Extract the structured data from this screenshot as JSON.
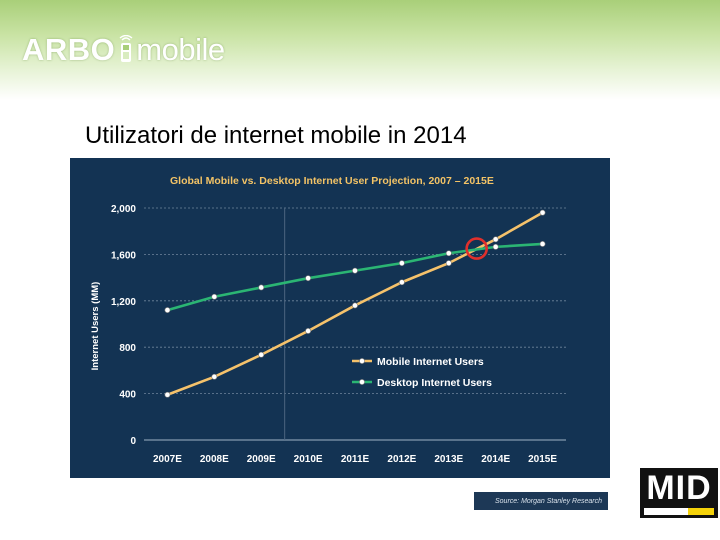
{
  "header": {
    "logo_part1": "ARBO",
    "logo_part2": "mobile",
    "brand_color": "#a9cf79"
  },
  "slide": {
    "title": "Utilizatori de internet mobile in 2014"
  },
  "chart_data": {
    "type": "line",
    "title": "Global Mobile vs. Desktop Internet User Projection, 2007 – 2015E",
    "xlabel": "",
    "ylabel": "Internet Users (MM)",
    "categories": [
      "2007E",
      "2008E",
      "2009E",
      "2010E",
      "2011E",
      "2012E",
      "2013E",
      "2014E",
      "2015E"
    ],
    "ylim": [
      0,
      2000
    ],
    "yticks": [
      "0",
      "400",
      "800",
      "1,200",
      "1,600",
      "2,000"
    ],
    "ytick_values": [
      0,
      400,
      800,
      1200,
      1600,
      2000
    ],
    "grid": true,
    "legend_position": "center-right",
    "series": [
      {
        "name": "Mobile Internet Users",
        "color": "#f5c26b",
        "values": [
          390,
          545,
          735,
          940,
          1160,
          1360,
          1525,
          1730,
          1960
        ]
      },
      {
        "name": "Desktop Internet Users",
        "color": "#2bb573",
        "values": [
          1120,
          1235,
          1315,
          1395,
          1460,
          1525,
          1610,
          1665,
          1690
        ]
      }
    ],
    "annotation": {
      "category": "2014E",
      "value": 1650,
      "color": "#e0302c",
      "shape": "circle"
    },
    "source": "Source: Morgan Stanley Research"
  },
  "corner_logo": {
    "text": "MID"
  }
}
